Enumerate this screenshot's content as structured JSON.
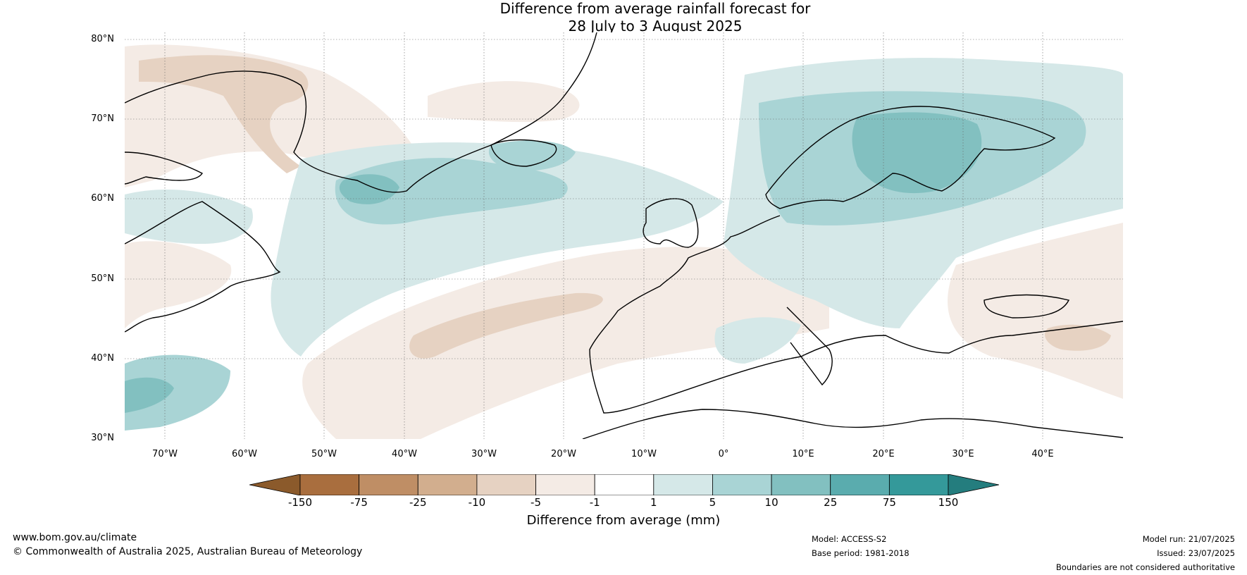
{
  "title_line1": "Difference from average rainfall forecast for",
  "title_line2": "28 July to 3 August 2025",
  "latitude_labels": [
    "80°N",
    "70°N",
    "60°N",
    "50°N",
    "40°N",
    "30°N"
  ],
  "longitude_labels": [
    "70°W",
    "60°W",
    "50°W",
    "40°W",
    "30°W",
    "20°W",
    "10°W",
    "0°",
    "10°E",
    "20°E",
    "30°E",
    "40°E"
  ],
  "map_extent": {
    "lon_min": -75,
    "lon_max": 50,
    "lat_min": 30,
    "lat_max": 81
  },
  "colorbar": {
    "label": "Difference from average (mm)",
    "ticks": [
      "-150",
      "-75",
      "-25",
      "-10",
      "-5",
      "-1",
      "1",
      "5",
      "10",
      "25",
      "75",
      "150"
    ],
    "colors": [
      "#8b5a2b",
      "#a96e3e",
      "#bf8e65",
      "#d2ae8e",
      "#e6d2c2",
      "#f4ebe5",
      "#ffffff",
      "#d5e8e8",
      "#a9d4d5",
      "#82c0c0",
      "#5aacae",
      "#34999a",
      "#247d7e"
    ]
  },
  "footer": {
    "website": "www.bom.gov.au/climate",
    "copyright": "© Commonwealth of Australia 2025, Australian Bureau of Meteorology",
    "model": "Model: ACCESS-S2",
    "base_period": "Base period: 1981-2018",
    "model_run": "Model run: 21/07/2025",
    "issued": "Issued: 23/07/2025",
    "disclaimer": "Boundaries are not considered authoritative"
  }
}
